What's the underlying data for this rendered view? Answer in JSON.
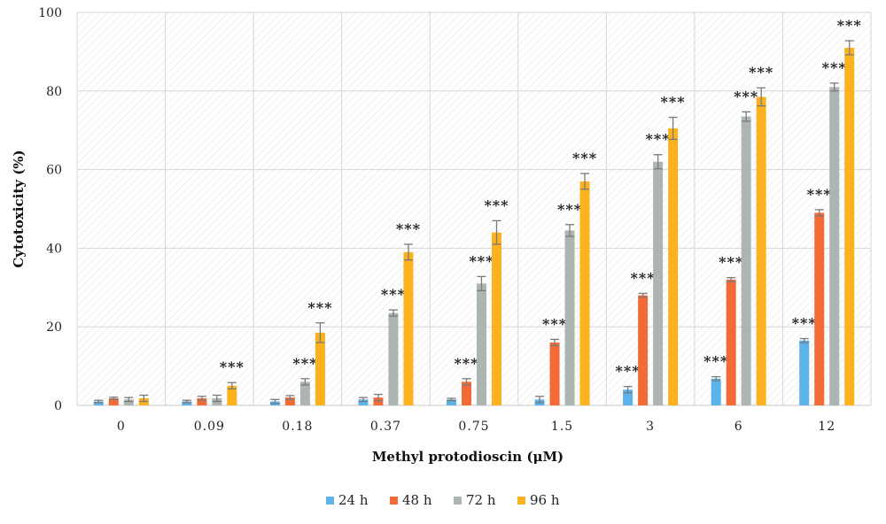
{
  "chart_data": {
    "type": "bar",
    "xlabel": "Methyl protodioscin (μM)",
    "ylabel": "Cytotoxicity (%)",
    "ylim": [
      0,
      100
    ],
    "yticks": [
      "0",
      "20",
      "40",
      "60",
      "80",
      "100"
    ],
    "categories": [
      "0",
      "0.09",
      "0.18",
      "0.37",
      "0.75",
      "1.5",
      "3",
      "6",
      "12"
    ],
    "significance_label": "***",
    "grid": "horizontal",
    "legend_position": "bottom",
    "series": [
      {
        "name": "24 h",
        "color": "#5bb3ea",
        "values": [
          1,
          1,
          1,
          1.5,
          1.5,
          1.5,
          4,
          6.8,
          16.5
        ],
        "errors": [
          0.3,
          0.3,
          0.5,
          0.5,
          0.3,
          0.8,
          0.8,
          0.5,
          0.5
        ],
        "significant": [
          false,
          false,
          false,
          false,
          false,
          false,
          true,
          true,
          true
        ]
      },
      {
        "name": "48 h",
        "color": "#f26b36",
        "values": [
          1.8,
          1.8,
          2,
          2,
          6,
          16,
          28,
          32,
          49
        ],
        "errors": [
          0.3,
          0.5,
          0.5,
          0.8,
          0.8,
          0.8,
          0.5,
          0.5,
          0.8
        ],
        "significant": [
          false,
          false,
          false,
          false,
          true,
          true,
          true,
          true,
          true
        ]
      },
      {
        "name": "72 h",
        "color": "#adb5b2",
        "values": [
          1.5,
          1.8,
          6,
          23.5,
          31,
          44.5,
          62,
          73.5,
          81
        ],
        "errors": [
          0.5,
          0.8,
          0.8,
          0.8,
          1.8,
          1.5,
          1.8,
          1.2,
          1
        ],
        "significant": [
          false,
          false,
          true,
          true,
          true,
          true,
          true,
          true,
          true
        ]
      },
      {
        "name": "96 h",
        "color": "#fbb21c",
        "values": [
          1.8,
          5,
          18.5,
          39,
          44,
          57,
          70.5,
          78.5,
          91
        ],
        "errors": [
          0.8,
          0.8,
          2.5,
          2,
          3,
          2,
          2.8,
          2.3,
          1.8
        ],
        "significant": [
          false,
          true,
          true,
          true,
          true,
          true,
          true,
          true,
          true
        ]
      }
    ]
  }
}
